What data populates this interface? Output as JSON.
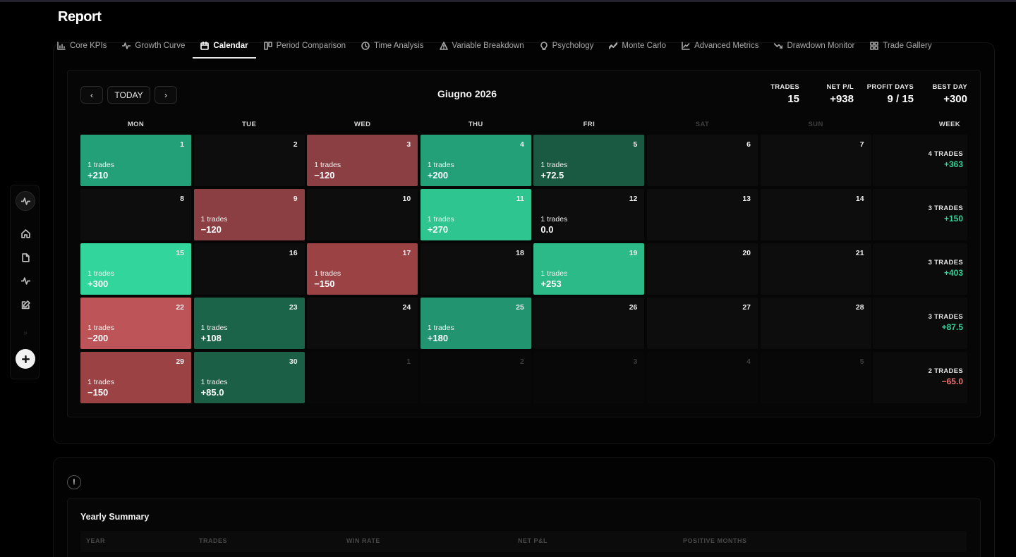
{
  "page_title": "Report",
  "tabs": [
    {
      "label": "Core KPIs",
      "icon": "bar-chart-icon",
      "active": false
    },
    {
      "label": "Growth Curve",
      "icon": "pulse-icon",
      "active": false
    },
    {
      "label": "Calendar",
      "icon": "calendar-icon",
      "active": true
    },
    {
      "label": "Period Comparison",
      "icon": "columns-icon",
      "active": false
    },
    {
      "label": "Time Analysis",
      "icon": "clock-icon",
      "active": false
    },
    {
      "label": "Variable Breakdown",
      "icon": "triangle-icon",
      "active": false
    },
    {
      "label": "Psychology",
      "icon": "lightbulb-icon",
      "active": false
    },
    {
      "label": "Monte Carlo",
      "icon": "trend-icon",
      "active": false
    },
    {
      "label": "Advanced Metrics",
      "icon": "line-chart-icon",
      "active": false
    },
    {
      "label": "Drawdown Monitor",
      "icon": "trend-down-icon",
      "active": false
    },
    {
      "label": "Trade Gallery",
      "icon": "grid-icon",
      "active": false
    }
  ],
  "sidebar": {
    "items": [
      "pulse-icon",
      "home-icon",
      "file-icon",
      "activity-icon",
      "edit-icon"
    ],
    "collapse_glyph": "»",
    "add_glyph": "+"
  },
  "calendar": {
    "prev_label": "‹",
    "today_label": "TODAY",
    "next_label": "›",
    "month_title": "Giugno 2026",
    "stats": {
      "trades_label": "TRADES",
      "trades_value": "15",
      "netpl_label": "NET P/L",
      "netpl_value": "+938",
      "profit_days_label": "PROFIT DAYS",
      "profit_days_value": "9 / 15",
      "best_day_label": "BEST DAY",
      "best_day_value": "+300"
    },
    "weekdays": [
      "MON",
      "TUE",
      "WED",
      "THU",
      "FRI",
      "SAT",
      "SUN"
    ],
    "week_header": "WEEK",
    "weeks": [
      {
        "days": [
          {
            "day": "1",
            "trades": "1 trades",
            "pl": "+210",
            "color": "#24a079"
          },
          {
            "day": "2"
          },
          {
            "day": "3",
            "trades": "1 trades",
            "pl": "−120",
            "color": "#8c3f42"
          },
          {
            "day": "4",
            "trades": "1 trades",
            "pl": "+200",
            "color": "#24a079"
          },
          {
            "day": "5",
            "trades": "1 trades",
            "pl": "+72.5",
            "color": "#1a5a43"
          },
          {
            "day": "6"
          },
          {
            "day": "7"
          }
        ],
        "week_trades": "4 TRADES",
        "week_pl": "+363",
        "week_sign": "pos"
      },
      {
        "days": [
          {
            "day": "8"
          },
          {
            "day": "9",
            "trades": "1 trades",
            "pl": "−120",
            "color": "#8c3f42"
          },
          {
            "day": "10"
          },
          {
            "day": "11",
            "trades": "1 trades",
            "pl": "+270",
            "color": "#2ec590"
          },
          {
            "day": "12",
            "trades": "1 trades",
            "pl": "0.0"
          },
          {
            "day": "13"
          },
          {
            "day": "14"
          }
        ],
        "week_trades": "3 TRADES",
        "week_pl": "+150",
        "week_sign": "pos"
      },
      {
        "days": [
          {
            "day": "15",
            "trades": "1 trades",
            "pl": "+300",
            "color": "#32d69c"
          },
          {
            "day": "16"
          },
          {
            "day": "17",
            "trades": "1 trades",
            "pl": "−150",
            "color": "#9b4245"
          },
          {
            "day": "18"
          },
          {
            "day": "19",
            "trades": "1 trades",
            "pl": "+253",
            "color": "#2cba89"
          },
          {
            "day": "20"
          },
          {
            "day": "21"
          }
        ],
        "week_trades": "3 TRADES",
        "week_pl": "+403",
        "week_sign": "pos"
      },
      {
        "days": [
          {
            "day": "22",
            "trades": "1 trades",
            "pl": "−200",
            "color": "#bd5457"
          },
          {
            "day": "23",
            "trades": "1 trades",
            "pl": "+108",
            "color": "#1b6449"
          },
          {
            "day": "24"
          },
          {
            "day": "25",
            "trades": "1 trades",
            "pl": "+180",
            "color": "#229470"
          },
          {
            "day": "26"
          },
          {
            "day": "27"
          },
          {
            "day": "28"
          }
        ],
        "week_trades": "3 TRADES",
        "week_pl": "+87.5",
        "week_sign": "pos"
      },
      {
        "days": [
          {
            "day": "29",
            "trades": "1 trades",
            "pl": "−150",
            "color": "#9b4245"
          },
          {
            "day": "30",
            "trades": "1 trades",
            "pl": "+85.0",
            "color": "#1a5f46"
          },
          {
            "day": "1",
            "other": true
          },
          {
            "day": "2",
            "other": true
          },
          {
            "day": "3",
            "other": true
          },
          {
            "day": "4",
            "other": true
          },
          {
            "day": "5",
            "other": true
          }
        ],
        "week_trades": "2 TRADES",
        "week_pl": "−65.0",
        "week_sign": "neg"
      }
    ]
  },
  "yearly_summary": {
    "info_glyph": "!",
    "title": "Yearly Summary",
    "columns": [
      "YEAR",
      "TRADES",
      "WIN RATE",
      "NET P&L",
      "POSITIVE MONTHS"
    ]
  },
  "colors": {
    "positive": "#34d399",
    "negative": "#f87171"
  }
}
